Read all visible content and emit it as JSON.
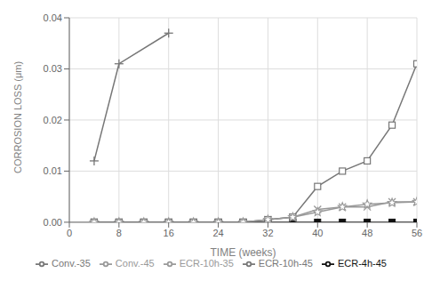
{
  "chart_data": {
    "type": "line",
    "title": "",
    "xlabel": "TIME (weeks)",
    "ylabel": "CORROSION LOSS (μm)",
    "xlim": [
      0,
      56
    ],
    "xticks": [
      0,
      8,
      16,
      24,
      32,
      40,
      48,
      56
    ],
    "ylim": [
      0,
      0.04
    ],
    "yticks": [
      {
        "value": 0,
        "label": "0.00"
      },
      0.01,
      0.02,
      0.03,
      0.04
    ],
    "grid": true,
    "legend": "bottom",
    "series": [
      {
        "name": "Conv.-45",
        "color": "#999999",
        "marker": "x",
        "x": [
          4,
          8,
          12,
          16,
          20,
          24,
          28,
          32,
          36,
          40,
          44,
          48,
          52,
          56
        ],
        "values": [
          0.0,
          0.0,
          0.0,
          0.0,
          0.0,
          0.0,
          0.0,
          0.0005,
          0.001,
          0.0025,
          0.003,
          0.003,
          0.004,
          0.004
        ]
      },
      {
        "name": "Conv.-35",
        "color": "#777777",
        "marker": "plus",
        "x": [
          4,
          8,
          16
        ],
        "values": [
          0.012,
          0.031,
          0.037
        ]
      },
      {
        "name": "ECR-4h-45",
        "color": "#111111",
        "marker": "square",
        "x": [
          4,
          8,
          12,
          16,
          20,
          24,
          28,
          32,
          36,
          40,
          44,
          48,
          52,
          56
        ],
        "values": [
          0.0,
          0.0,
          0.0,
          0.0,
          0.0,
          0.0,
          0.0,
          0.0,
          0.0,
          0.0,
          0.0,
          0.0,
          0.0,
          0.0
        ]
      },
      {
        "name": "ECR-10h-45",
        "color": "#777777",
        "marker": "square-open",
        "x": [
          4,
          8,
          12,
          16,
          20,
          24,
          28,
          32,
          36,
          40,
          44,
          48,
          52,
          56
        ],
        "values": [
          0.0,
          0.0,
          0.0,
          0.0,
          0.0,
          0.0,
          0.0,
          0.0005,
          0.001,
          0.007,
          0.01,
          0.012,
          0.019,
          0.031
        ]
      },
      {
        "name": "ECR-10h-35",
        "color": "#999999",
        "marker": "star-open",
        "x": [
          4,
          8,
          12,
          16,
          20,
          24,
          28,
          32,
          36,
          40,
          44,
          48,
          52,
          56
        ],
        "values": [
          0.0,
          0.0,
          0.0,
          0.0,
          0.0,
          0.0,
          0.0,
          0.0005,
          0.001,
          0.002,
          0.003,
          0.0035,
          0.0038,
          0.004
        ]
      }
    ]
  }
}
